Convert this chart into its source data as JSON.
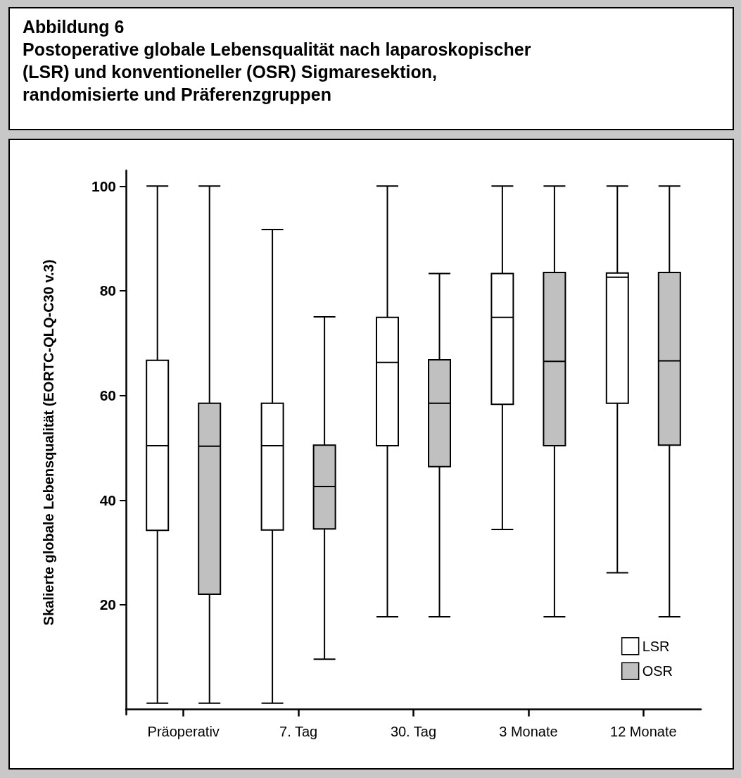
{
  "chart_data": {
    "type": "box",
    "title": "Abbildung 6",
    "subtitle": "Postoperative globale Lebensqualität nach laparoskopischer (LSR) und konventioneller (OSR) Sigmaresektion, randomisierte und Präferenzgruppen",
    "ylabel": "Skalierte globale Lebensqualität (EORTC-QLQ-C30 v.3)",
    "categories": [
      "Präoperativ",
      "7. Tag",
      "30. Tag",
      "3 Monate",
      "12 Monate"
    ],
    "series": [
      {
        "name": "LSR",
        "color": "#ffffff",
        "boxes": [
          {
            "low": 1.2,
            "q1": 34.2,
            "median": 50.4,
            "q3": 66.7,
            "high": 100
          },
          {
            "low": 1.2,
            "q1": 34.3,
            "median": 50.4,
            "q3": 58.5,
            "high": 91.7
          },
          {
            "low": 17.7,
            "q1": 50.4,
            "median": 66.3,
            "q3": 74.9,
            "high": 100
          },
          {
            "low": 34.4,
            "q1": 58.3,
            "median": 74.9,
            "q3": 83.3,
            "high": 100
          },
          {
            "low": 26.1,
            "q1": 58.5,
            "median": 82.6,
            "q3": 83.4,
            "high": 100
          }
        ]
      },
      {
        "name": "OSR",
        "color": "#c0c0c0",
        "boxes": [
          {
            "low": 1.2,
            "q1": 22,
            "median": 50.3,
            "q3": 58.5,
            "high": 100
          },
          {
            "low": 9.6,
            "q1": 34.5,
            "median": 42.6,
            "q3": 50.5,
            "high": 75
          },
          {
            "low": 17.7,
            "q1": 46.4,
            "median": 58.5,
            "q3": 66.8,
            "high": 83.3
          },
          {
            "low": 17.7,
            "q1": 50.4,
            "median": 66.5,
            "q3": 83.5,
            "high": 100
          },
          {
            "low": 17.7,
            "q1": 50.5,
            "median": 66.6,
            "q3": 83.5,
            "high": 100
          }
        ]
      }
    ],
    "ylim": [
      -1,
      103
    ],
    "yticks": [
      20,
      40,
      60,
      80,
      100
    ],
    "legend": "bottom right"
  }
}
